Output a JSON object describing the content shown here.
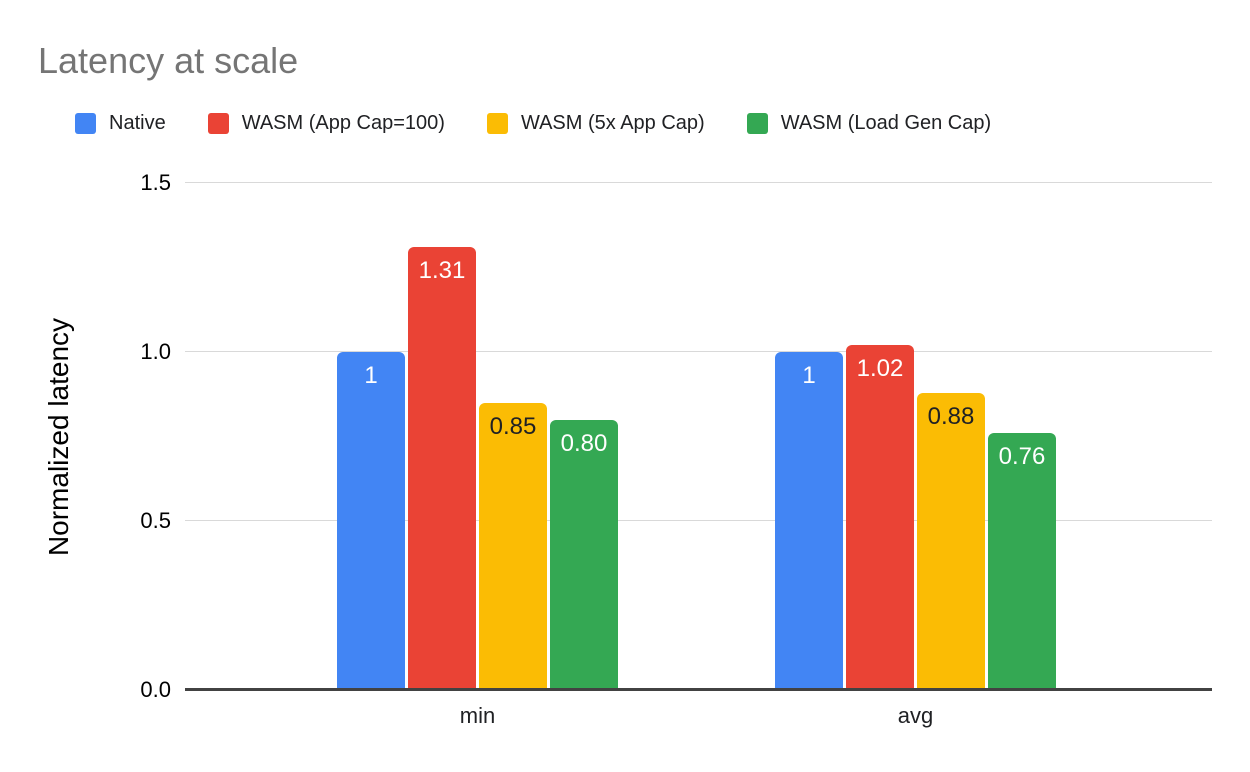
{
  "title": "Latency at scale",
  "chart_data": {
    "type": "bar",
    "title": "Latency at scale",
    "categories": [
      "min",
      "avg"
    ],
    "series": [
      {
        "name": "Native",
        "color": "#4285F4",
        "label_color": "#FFFFFF",
        "values": [
          1.0,
          1.0
        ],
        "labels": [
          "1",
          "1"
        ]
      },
      {
        "name": "WASM (App Cap=100)",
        "color": "#EA4335",
        "label_color": "#FFFFFF",
        "values": [
          1.31,
          1.02
        ],
        "labels": [
          "1.31",
          "1.02"
        ]
      },
      {
        "name": "WASM (5x App Cap)",
        "color": "#FBBC04",
        "label_color": "#202124",
        "values": [
          0.85,
          0.88
        ],
        "labels": [
          "0.85",
          "0.88"
        ]
      },
      {
        "name": "WASM (Load Gen Cap)",
        "color": "#34A853",
        "label_color": "#FFFFFF",
        "values": [
          0.8,
          0.76
        ],
        "labels": [
          "0.80",
          "0.76"
        ]
      }
    ],
    "xlabel": "",
    "ylabel": "Normalized latency",
    "ylim": [
      0,
      1.5
    ],
    "yticks": [
      0.0,
      0.5,
      1.0,
      1.5
    ],
    "ytick_labels": [
      "0.0",
      "0.5",
      "1.0",
      "1.5"
    ],
    "grid": true,
    "legend_position": "top",
    "colors": {
      "title_text": "#757575",
      "axis_text": "#000000",
      "legend_text": "#202124",
      "gridline": "#D9D9D9",
      "baseline": "#424242",
      "background": "#FFFFFF"
    }
  }
}
